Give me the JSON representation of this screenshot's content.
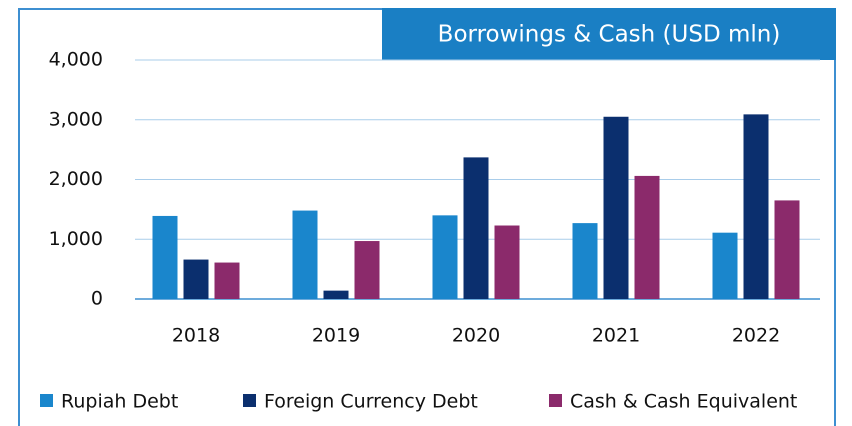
{
  "chart_data": {
    "type": "bar",
    "title": "Borrowings & Cash (USD mln)",
    "categories": [
      "2018",
      "2019",
      "2020",
      "2021",
      "2022"
    ],
    "series": [
      {
        "name": "Rupiah Debt",
        "color": "#1a86cc",
        "values": [
          1390,
          1480,
          1400,
          1270,
          1110
        ]
      },
      {
        "name": "Foreign Currency Debt",
        "color": "#0b2f6e",
        "values": [
          660,
          140,
          2370,
          3050,
          3090
        ]
      },
      {
        "name": "Cash & Cash Equivalent",
        "color": "#8b2a6b",
        "values": [
          610,
          970,
          1230,
          2060,
          1650
        ]
      }
    ],
    "ylim": [
      0,
      4000
    ],
    "yticks": [
      0,
      {
        "value": 1000,
        "label": "1,000"
      },
      {
        "value": 2000,
        "label": "2,000"
      },
      {
        "value": 3000,
        "label": "3,000"
      },
      {
        "value": 4000,
        "label": "4,000"
      }
    ],
    "grid": true,
    "legend": "bottom"
  }
}
